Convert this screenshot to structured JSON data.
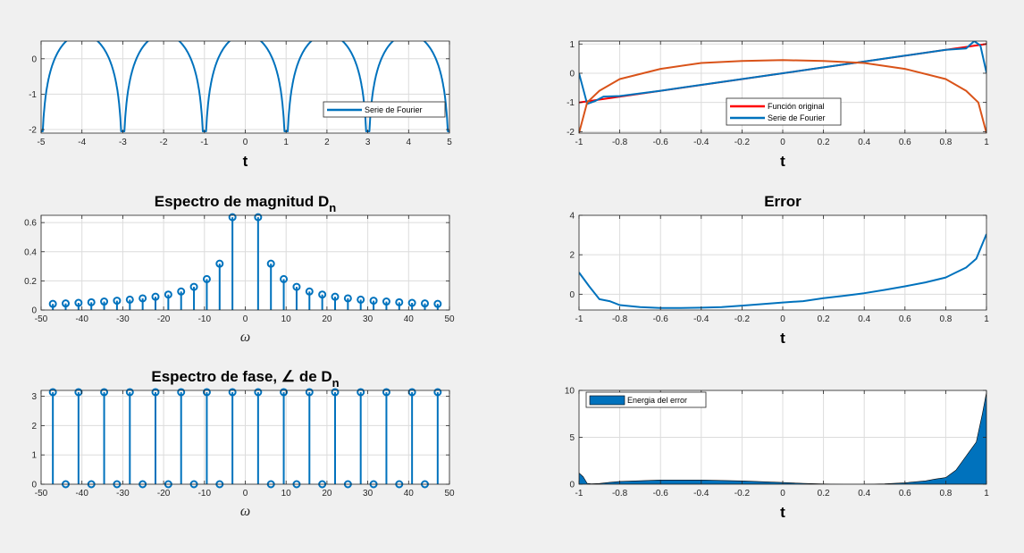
{
  "colors": {
    "blue": "#0072bd",
    "red": "#ff0000",
    "orange": "#d95319",
    "grid": "#dcdcdc",
    "axis": "#262626",
    "background": "#f0f0f0"
  },
  "chart_data": [
    {
      "id": "p1",
      "type": "line",
      "xlim": [
        -5,
        5
      ],
      "ylim": [
        -2.1,
        0.5
      ],
      "xticks": [
        -5,
        -4,
        -3,
        -2,
        -1,
        0,
        1,
        2,
        3,
        4,
        5
      ],
      "yticks": [
        -2,
        -1,
        0
      ],
      "xlabel": "t",
      "title": "",
      "legend": {
        "entries": [
          "Serie de Fourier"
        ],
        "position": "bottom-right"
      },
      "series": [
        {
          "name": "Serie de Fourier",
          "function": "log|2sin(pi(t+1)/2)| (periodic, period 2, dips at odd t)",
          "x": [
            -5,
            -4.5,
            -4,
            -3.5,
            -3,
            -2.5,
            -2,
            -1.5,
            -1,
            -0.5,
            0,
            0.5,
            1,
            1.5,
            2,
            2.5,
            3,
            3.5,
            4,
            4.5,
            5
          ],
          "y": [
            -2.05,
            0.35,
            0.45,
            0.35,
            -2.05,
            0.35,
            0.45,
            0.35,
            -2.05,
            0.35,
            0.45,
            0.35,
            -2.05,
            0.35,
            0.45,
            0.35,
            -2.05,
            0.35,
            0.45,
            0.35,
            -2.05
          ]
        }
      ]
    },
    {
      "id": "p2",
      "type": "line",
      "xlim": [
        -1,
        1
      ],
      "ylim": [
        -2.05,
        1.1
      ],
      "xticks": [
        -1,
        -0.8,
        -0.6,
        -0.4,
        -0.2,
        0,
        0.2,
        0.4,
        0.6,
        0.8,
        1
      ],
      "yticks": [
        -2,
        -1,
        0,
        1
      ],
      "xlabel": "t",
      "title": "",
      "legend": {
        "entries": [
          "Función original",
          "Serie de Fourier"
        ],
        "position": "bottom-center"
      },
      "series": [
        {
          "name": "Función original",
          "x": [
            -1,
            1
          ],
          "y": [
            -1,
            1
          ]
        },
        {
          "name": "Serie de Fourier",
          "x": [
            -1,
            -0.96,
            -0.92,
            -0.88,
            -0.8,
            -0.6,
            -0.4,
            -0.2,
            0,
            0.2,
            0.4,
            0.6,
            0.8,
            0.9,
            0.94,
            0.97,
            1
          ],
          "y": [
            0,
            -1.05,
            -0.95,
            -0.8,
            -0.78,
            -0.6,
            -0.4,
            -0.2,
            0,
            0.2,
            0.4,
            0.6,
            0.8,
            0.85,
            1.1,
            0.95,
            0.02
          ]
        },
        {
          "x": [
            -1,
            -0.96,
            -0.9,
            -0.8,
            -0.6,
            -0.4,
            -0.2,
            0,
            0.2,
            0.4,
            0.6,
            0.8,
            0.9,
            0.96,
            1
          ],
          "y": [
            -2.05,
            -1.0,
            -0.6,
            -0.2,
            0.15,
            0.35,
            0.42,
            0.45,
            0.42,
            0.35,
            0.15,
            -0.2,
            -0.6,
            -1.0,
            -2.05
          ]
        }
      ]
    },
    {
      "id": "p3",
      "type": "stem",
      "xlim": [
        -50,
        50
      ],
      "ylim": [
        0,
        0.65
      ],
      "xticks": [
        -50,
        -40,
        -30,
        -20,
        -10,
        0,
        10,
        20,
        30,
        40,
        50
      ],
      "yticks": [
        0,
        0.2,
        0.4,
        0.6
      ],
      "xlabel": "ω",
      "title": "Espectro de magnitud D",
      "title_sub": "n",
      "series": [
        {
          "x": [
            -47.12,
            -43.98,
            -40.84,
            -37.7,
            -34.56,
            -31.42,
            -28.27,
            -25.13,
            -21.99,
            -18.85,
            -15.71,
            -12.57,
            -9.42,
            -6.28,
            -3.14,
            3.14,
            6.28,
            9.42,
            12.57,
            15.71,
            18.85,
            21.99,
            25.13,
            28.27,
            31.42,
            34.56,
            37.7,
            40.84,
            43.98,
            47.12
          ],
          "y": [
            0.042,
            0.045,
            0.049,
            0.053,
            0.058,
            0.064,
            0.071,
            0.08,
            0.091,
            0.106,
            0.127,
            0.159,
            0.212,
            0.318,
            0.637,
            0.637,
            0.318,
            0.212,
            0.159,
            0.127,
            0.106,
            0.091,
            0.08,
            0.071,
            0.064,
            0.058,
            0.053,
            0.049,
            0.045,
            0.042
          ]
        }
      ]
    },
    {
      "id": "p4",
      "type": "line",
      "xlim": [
        -1,
        1
      ],
      "ylim": [
        -0.8,
        4
      ],
      "xticks": [
        -1,
        -0.8,
        -0.6,
        -0.4,
        -0.2,
        0,
        0.2,
        0.4,
        0.6,
        0.8,
        1
      ],
      "yticks": [
        0,
        2,
        4
      ],
      "xlabel": "t",
      "title": "Error",
      "series": [
        {
          "x": [
            -1,
            -0.95,
            -0.9,
            -0.85,
            -0.8,
            -0.7,
            -0.6,
            -0.5,
            -0.4,
            -0.3,
            -0.2,
            -0.1,
            0,
            0.1,
            0.2,
            0.3,
            0.4,
            0.5,
            0.6,
            0.7,
            0.8,
            0.85,
            0.9,
            0.95,
            1
          ],
          "y": [
            1.1,
            0.4,
            -0.25,
            -0.35,
            -0.55,
            -0.65,
            -0.7,
            -0.7,
            -0.68,
            -0.65,
            -0.58,
            -0.5,
            -0.42,
            -0.35,
            -0.2,
            -0.08,
            0.05,
            0.22,
            0.4,
            0.6,
            0.85,
            1.1,
            1.35,
            1.8,
            3.05
          ]
        }
      ]
    },
    {
      "id": "p5",
      "type": "stem",
      "xlim": [
        -50,
        50
      ],
      "ylim": [
        0,
        3.2
      ],
      "xticks": [
        -50,
        -40,
        -30,
        -20,
        -10,
        0,
        10,
        20,
        30,
        40,
        50
      ],
      "yticks": [
        0,
        1,
        2,
        3
      ],
      "xlabel": "ω",
      "title": "Espectro de fase, ∠ de D",
      "title_sub": "n",
      "series": [
        {
          "x": [
            -47.12,
            -43.98,
            -40.84,
            -37.7,
            -34.56,
            -31.42,
            -28.27,
            -25.13,
            -21.99,
            -18.85,
            -15.71,
            -12.57,
            -9.42,
            -6.28,
            -3.14,
            3.14,
            6.28,
            9.42,
            12.57,
            15.71,
            18.85,
            21.99,
            25.13,
            28.27,
            31.42,
            34.56,
            37.7,
            40.84,
            43.98,
            47.12
          ],
          "y": [
            3.14,
            0,
            3.14,
            0,
            3.14,
            0,
            3.14,
            0,
            3.14,
            0,
            3.14,
            0,
            3.14,
            0,
            3.14,
            3.14,
            0,
            3.14,
            0,
            3.14,
            0,
            3.14,
            0,
            3.14,
            0,
            3.14,
            0,
            3.14,
            0,
            3.14
          ]
        }
      ]
    },
    {
      "id": "p6",
      "type": "area",
      "xlim": [
        -1,
        1
      ],
      "ylim": [
        0,
        10
      ],
      "xticks": [
        -1,
        -0.8,
        -0.6,
        -0.4,
        -0.2,
        0,
        0.2,
        0.4,
        0.6,
        0.8,
        1
      ],
      "yticks": [
        0,
        5,
        10
      ],
      "xlabel": "t",
      "title": "",
      "legend": {
        "entries": [
          "Energia del error"
        ],
        "position": "top-left"
      },
      "series": [
        {
          "name": "Energia del error",
          "x": [
            -1,
            -0.98,
            -0.96,
            -0.94,
            -0.9,
            -0.85,
            -0.8,
            -0.6,
            -0.4,
            -0.2,
            0,
            0.1,
            0.2,
            0.3,
            0.4,
            0.5,
            0.6,
            0.7,
            0.75,
            0.8,
            0.85,
            0.9,
            0.95,
            0.98,
            1
          ],
          "y": [
            1.2,
            0.8,
            0.1,
            0.05,
            0.08,
            0.2,
            0.3,
            0.45,
            0.45,
            0.35,
            0.18,
            0.1,
            0.03,
            0,
            0,
            0.05,
            0.15,
            0.35,
            0.55,
            0.7,
            1.5,
            3.0,
            4.5,
            7.5,
            9.8
          ]
        }
      ]
    }
  ]
}
